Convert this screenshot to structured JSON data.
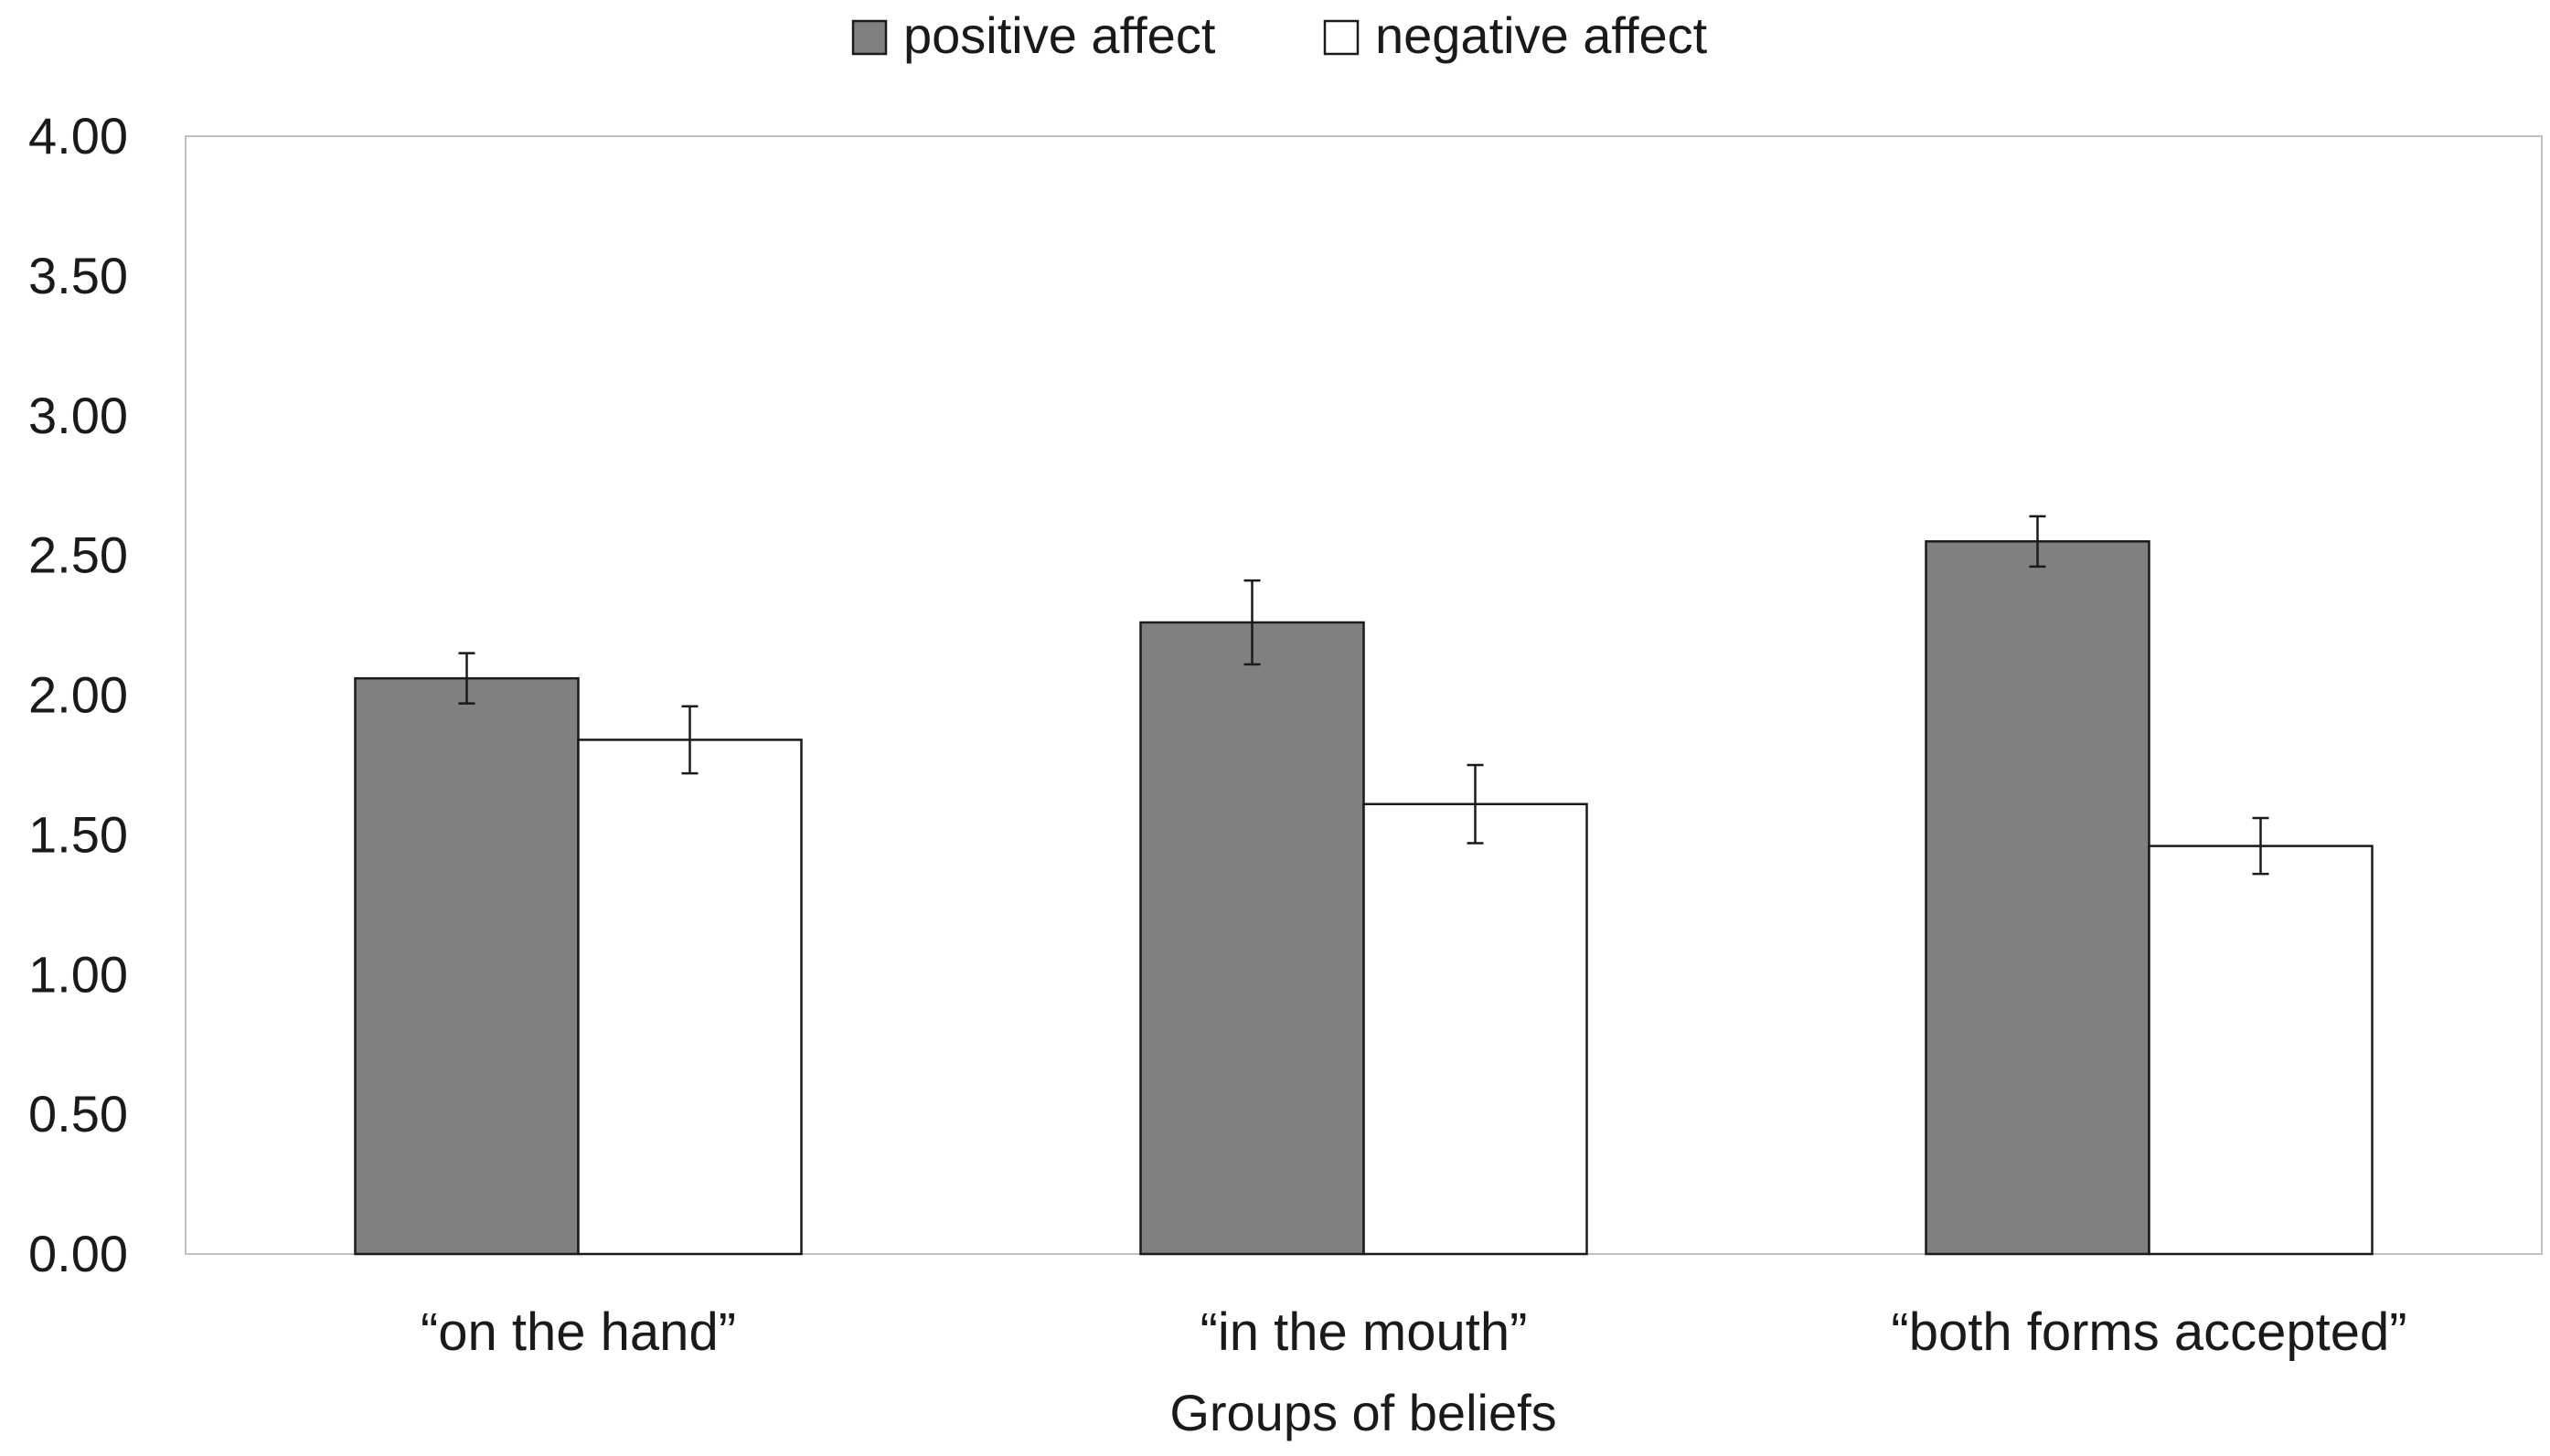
{
  "chart_data": {
    "type": "bar",
    "title": "",
    "xlabel": "Groups of beliefs",
    "ylabel": "",
    "categories": [
      "“on the hand”",
      "“in the mouth”",
      "“both forms accepted”"
    ],
    "series": [
      {
        "name": "positive affect",
        "color": "#808080",
        "values": [
          2.06,
          2.26,
          2.55
        ],
        "errors": [
          0.09,
          0.15,
          0.09
        ]
      },
      {
        "name": "negative affect",
        "color": "#ffffff",
        "values": [
          1.84,
          1.61,
          1.46
        ],
        "errors": [
          0.12,
          0.14,
          0.1
        ]
      }
    ],
    "ylim": [
      0,
      4
    ],
    "yticks": [
      0,
      0.5,
      1,
      1.5,
      2,
      2.5,
      3,
      3.5,
      4
    ],
    "ytick_labels": [
      "0.00",
      "0.50",
      "1.00",
      "1.50",
      "2.00",
      "2.50",
      "3.00",
      "3.50",
      "4.00"
    ],
    "legend_position": "top-center",
    "grid": false
  }
}
